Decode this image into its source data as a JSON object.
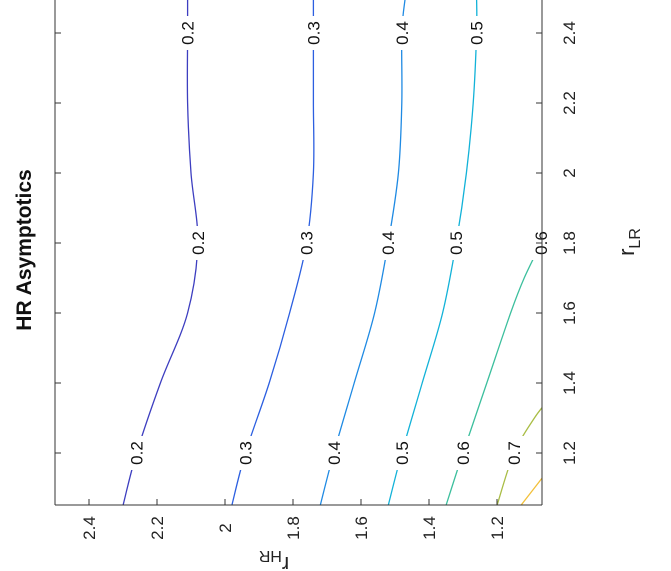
{
  "chart_data": {
    "type": "contour",
    "title": "HR Asymptotics",
    "xlabel": "r_LR",
    "ylabel": "r_HR",
    "xlim": [
      1.05,
      2.5
    ],
    "ylim": [
      1.05,
      2.55
    ],
    "xticks": [
      "1.2",
      "1.4",
      "1.6",
      "1.8",
      "2",
      "2.2",
      "2.4"
    ],
    "yticks": [
      "1.2",
      "1.4",
      "1.6",
      "1.8",
      "2",
      "2.2",
      "2.4"
    ],
    "orientation": "rotated 90 degrees counter-clockwise",
    "grid": false,
    "levels": [
      {
        "level": 0.2,
        "label": "0.2",
        "color": "#3d3ec0",
        "points": [
          [
            1.05,
            2.3
          ],
          [
            1.2,
            2.26
          ],
          [
            1.4,
            2.19
          ],
          [
            1.6,
            2.11
          ],
          [
            1.8,
            2.08
          ],
          [
            2.0,
            2.1
          ],
          [
            2.2,
            2.11
          ],
          [
            2.4,
            2.11
          ],
          [
            2.5,
            2.11
          ]
        ]
      },
      {
        "level": 0.3,
        "label": "0.3",
        "color": "#2c5fe0",
        "points": [
          [
            1.05,
            1.98
          ],
          [
            1.2,
            1.94
          ],
          [
            1.4,
            1.87
          ],
          [
            1.6,
            1.81
          ],
          [
            1.8,
            1.76
          ],
          [
            2.0,
            1.74
          ],
          [
            2.2,
            1.74
          ],
          [
            2.4,
            1.74
          ],
          [
            2.5,
            1.74
          ]
        ]
      },
      {
        "level": 0.4,
        "label": "0.4",
        "color": "#1f8ae3",
        "points": [
          [
            1.05,
            1.72
          ],
          [
            1.2,
            1.68
          ],
          [
            1.4,
            1.62
          ],
          [
            1.6,
            1.56
          ],
          [
            1.8,
            1.52
          ],
          [
            2.0,
            1.49
          ],
          [
            2.2,
            1.48
          ],
          [
            2.4,
            1.48
          ],
          [
            2.5,
            1.47
          ]
        ]
      },
      {
        "level": 0.5,
        "label": "0.5",
        "color": "#12b2d8",
        "points": [
          [
            1.05,
            1.52
          ],
          [
            1.2,
            1.48
          ],
          [
            1.4,
            1.42
          ],
          [
            1.6,
            1.36
          ],
          [
            1.8,
            1.32
          ],
          [
            2.0,
            1.29
          ],
          [
            2.2,
            1.27
          ],
          [
            2.4,
            1.26
          ],
          [
            2.5,
            1.26
          ]
        ]
      },
      {
        "level": 0.6,
        "label": "0.6",
        "color": "#3cbf9d",
        "points": [
          [
            1.05,
            1.35
          ],
          [
            1.2,
            1.3
          ],
          [
            1.4,
            1.23
          ],
          [
            1.6,
            1.16
          ],
          [
            1.7,
            1.12
          ],
          [
            1.8,
            1.07
          ]
        ]
      },
      {
        "level": 0.7,
        "label": "0.7",
        "color": "#a9bd45",
        "points": [
          [
            1.05,
            1.2
          ],
          [
            1.2,
            1.15
          ],
          [
            1.3,
            1.09
          ],
          [
            1.35,
            1.05
          ]
        ]
      },
      {
        "level": 0.8,
        "label": "",
        "color": "#f2c03a",
        "points": [
          [
            1.05,
            1.13
          ],
          [
            1.15,
            1.05
          ]
        ]
      }
    ]
  }
}
